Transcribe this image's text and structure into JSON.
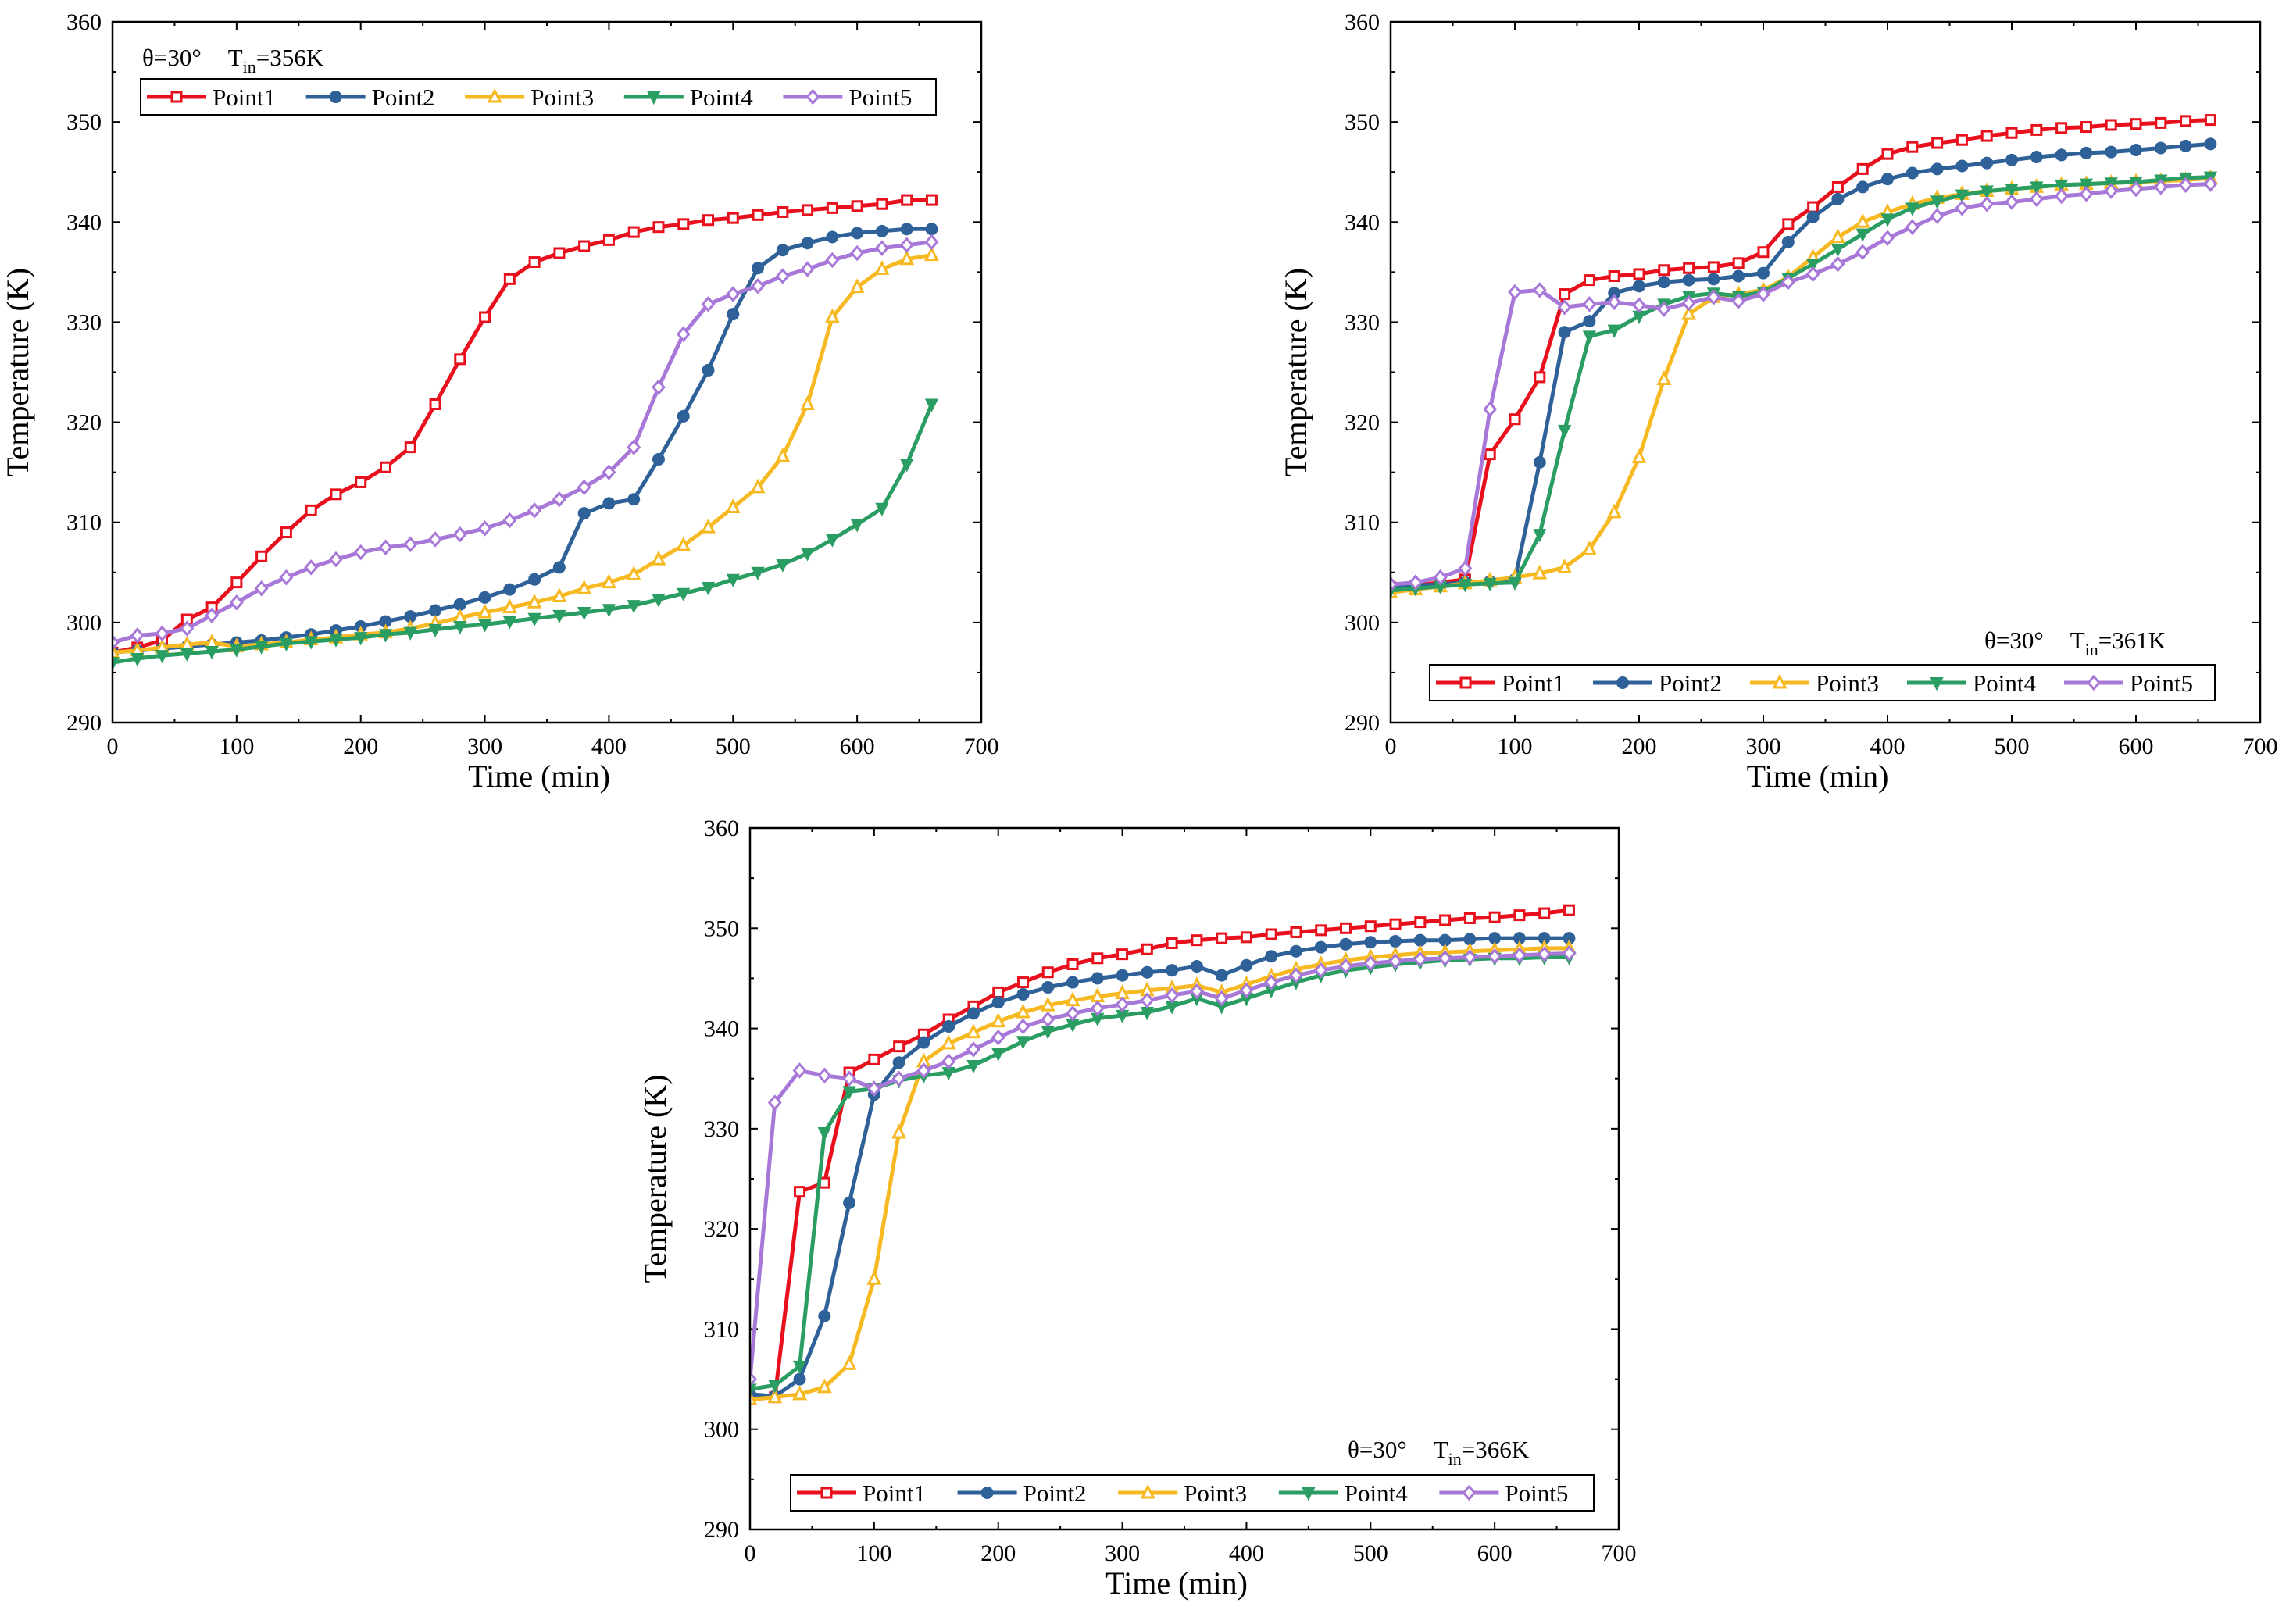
{
  "colors": {
    "Point1": "#e8101c",
    "Point2": "#2f6199",
    "Point3": "#f7b922",
    "Point4": "#2a9d62",
    "Point5": "#a878d8"
  },
  "markers": {
    "Point1": "square-open",
    "Point2": "circle-filled",
    "Point3": "triangle-up-open",
    "Point4": "triangle-down-filled",
    "Point5": "diamond-open"
  },
  "chart_data": [
    {
      "type": "line",
      "title": "",
      "xlabel": "Time (min)",
      "ylabel": "Temperature (K)",
      "xlim": [
        0,
        700
      ],
      "ylim": [
        290,
        360
      ],
      "xticks": [
        "0",
        "100",
        "200",
        "300",
        "400",
        "500",
        "600",
        "700"
      ],
      "yticks": [
        "290",
        "300",
        "310",
        "320",
        "330",
        "340",
        "350",
        "360"
      ],
      "annotation": {
        "prefix": "θ=30°",
        "var": "T",
        "sub": "in",
        "value": "=356K"
      },
      "legend_position": "top-left",
      "x": [
        0,
        20,
        40,
        60,
        80,
        100,
        120,
        140,
        160,
        180,
        200,
        220,
        240,
        260,
        280,
        300,
        320,
        340,
        360,
        380,
        400,
        420,
        440,
        460,
        480,
        500,
        520,
        540,
        560,
        580,
        600,
        620,
        640,
        660
      ],
      "series": [
        {
          "name": "Point1",
          "values": [
            297.0,
            297.5,
            298.2,
            300.3,
            301.5,
            304.0,
            306.6,
            309.0,
            311.2,
            312.8,
            314.0,
            315.5,
            317.5,
            321.8,
            326.3,
            330.5,
            334.3,
            336.0,
            336.9,
            337.6,
            338.2,
            339.0,
            339.5,
            339.8,
            340.2,
            340.4,
            340.7,
            341.0,
            341.2,
            341.4,
            341.6,
            341.8,
            342.2,
            342.2
          ]
        },
        {
          "name": "Point2",
          "values": [
            297.0,
            297.2,
            297.4,
            297.6,
            297.8,
            298.0,
            298.2,
            298.5,
            298.8,
            299.2,
            299.6,
            300.1,
            300.6,
            301.2,
            301.8,
            302.5,
            303.3,
            304.3,
            305.5,
            310.9,
            311.9,
            312.3,
            316.3,
            320.6,
            325.2,
            330.8,
            335.4,
            337.2,
            337.9,
            338.5,
            338.9,
            339.1,
            339.3,
            339.3
          ]
        },
        {
          "name": "Point3",
          "values": [
            297.0,
            297.2,
            297.5,
            297.8,
            298.0,
            297.6,
            297.8,
            298.0,
            298.3,
            298.5,
            298.8,
            299.0,
            299.4,
            299.9,
            300.5,
            301.0,
            301.5,
            302.0,
            302.6,
            303.4,
            304.0,
            304.8,
            306.3,
            307.7,
            309.5,
            311.5,
            313.5,
            316.6,
            321.8,
            330.5,
            333.5,
            335.3,
            336.3,
            336.7
          ]
        },
        {
          "name": "Point4",
          "values": [
            296.0,
            296.4,
            296.7,
            296.9,
            297.1,
            297.3,
            297.6,
            297.9,
            298.1,
            298.3,
            298.5,
            298.8,
            299.0,
            299.3,
            299.6,
            299.8,
            300.1,
            300.4,
            300.7,
            301.0,
            301.3,
            301.7,
            302.3,
            302.9,
            303.5,
            304.3,
            305.0,
            305.8,
            306.9,
            308.3,
            309.8,
            311.4,
            315.8,
            321.8
          ]
        },
        {
          "name": "Point5",
          "values": [
            298.0,
            298.7,
            298.9,
            299.4,
            300.7,
            302.0,
            303.4,
            304.5,
            305.5,
            306.3,
            307.0,
            307.5,
            307.8,
            308.3,
            308.8,
            309.4,
            310.2,
            311.2,
            312.3,
            313.5,
            315.0,
            317.5,
            323.5,
            328.8,
            331.8,
            332.8,
            333.6,
            334.6,
            335.3,
            336.2,
            336.9,
            337.4,
            337.7,
            338.0
          ]
        }
      ]
    },
    {
      "type": "line",
      "title": "",
      "xlabel": "Time (min)",
      "ylabel": "Temperature (K)",
      "xlim": [
        0,
        700
      ],
      "ylim": [
        290,
        360
      ],
      "xticks": [
        "0",
        "100",
        "200",
        "300",
        "400",
        "500",
        "600",
        "700"
      ],
      "yticks": [
        "290",
        "300",
        "310",
        "320",
        "330",
        "340",
        "350",
        "360"
      ],
      "annotation": {
        "prefix": "θ=30°",
        "var": "T",
        "sub": "in",
        "value": "=361K"
      },
      "legend_position": "bottom-right",
      "x": [
        0,
        20,
        40,
        60,
        80,
        100,
        120,
        140,
        160,
        180,
        200,
        220,
        240,
        260,
        280,
        300,
        320,
        340,
        360,
        380,
        400,
        420,
        440,
        460,
        480,
        500,
        520,
        540,
        560,
        580,
        600,
        620,
        640,
        660
      ],
      "series": [
        {
          "name": "Point1",
          "values": [
            303.5,
            303.7,
            304.0,
            304.3,
            316.8,
            320.3,
            324.5,
            332.8,
            334.2,
            334.6,
            334.8,
            335.2,
            335.4,
            335.5,
            335.9,
            337.0,
            339.8,
            341.5,
            343.5,
            345.3,
            346.8,
            347.5,
            347.9,
            348.2,
            348.6,
            348.9,
            349.2,
            349.4,
            349.5,
            349.7,
            349.8,
            349.9,
            350.1,
            350.2
          ]
        },
        {
          "name": "Point2",
          "values": [
            303.5,
            303.7,
            303.8,
            304.0,
            304.1,
            304.3,
            316.0,
            329.0,
            330.1,
            332.9,
            333.6,
            334.0,
            334.2,
            334.3,
            334.6,
            334.9,
            338.0,
            340.5,
            342.3,
            343.5,
            344.3,
            344.9,
            345.3,
            345.6,
            345.9,
            346.2,
            346.5,
            346.7,
            346.9,
            347.0,
            347.2,
            347.4,
            347.6,
            347.8
          ]
        },
        {
          "name": "Point3",
          "values": [
            303.0,
            303.3,
            303.6,
            303.9,
            304.2,
            304.5,
            304.9,
            305.5,
            307.3,
            311.0,
            316.5,
            324.3,
            330.8,
            332.5,
            332.8,
            333.2,
            334.5,
            336.5,
            338.5,
            340.0,
            341.0,
            341.8,
            342.4,
            342.8,
            343.1,
            343.3,
            343.5,
            343.7,
            343.8,
            343.9,
            344.0,
            344.1,
            344.2,
            344.4
          ]
        },
        {
          "name": "Point4",
          "values": [
            303.2,
            303.4,
            303.6,
            303.8,
            303.9,
            304.0,
            308.8,
            319.2,
            328.6,
            329.2,
            330.6,
            331.8,
            332.6,
            332.9,
            332.6,
            333.0,
            334.4,
            335.8,
            337.3,
            338.8,
            340.3,
            341.4,
            342.1,
            342.7,
            343.1,
            343.3,
            343.5,
            343.7,
            343.8,
            343.9,
            344.0,
            344.2,
            344.4,
            344.5
          ]
        },
        {
          "name": "Point5",
          "values": [
            303.8,
            304.0,
            304.5,
            305.4,
            321.3,
            333.0,
            333.2,
            331.5,
            331.8,
            332.0,
            331.7,
            331.3,
            331.9,
            332.5,
            332.1,
            332.8,
            334.0,
            334.8,
            335.8,
            337.0,
            338.4,
            339.5,
            340.6,
            341.4,
            341.8,
            342.0,
            342.3,
            342.6,
            342.8,
            343.1,
            343.3,
            343.5,
            343.7,
            343.8
          ]
        }
      ]
    },
    {
      "type": "line",
      "title": "",
      "xlabel": "Time (min)",
      "ylabel": "Temperature (K)",
      "xlim": [
        0,
        700
      ],
      "ylim": [
        290,
        360
      ],
      "xticks": [
        "0",
        "100",
        "200",
        "300",
        "400",
        "500",
        "600",
        "700"
      ],
      "yticks": [
        "290",
        "300",
        "310",
        "320",
        "330",
        "340",
        "350",
        "360"
      ],
      "annotation": {
        "prefix": "θ=30°",
        "var": "T",
        "sub": "in",
        "value": "=366K"
      },
      "legend_position": "bottom-right",
      "x": [
        0,
        20,
        40,
        60,
        80,
        100,
        120,
        140,
        160,
        180,
        200,
        220,
        240,
        260,
        280,
        300,
        320,
        340,
        360,
        380,
        400,
        420,
        440,
        460,
        480,
        500,
        520,
        540,
        560,
        580,
        600,
        620,
        640,
        660
      ],
      "series": [
        {
          "name": "Point1",
          "values": [
            303.0,
            303.2,
            323.7,
            324.6,
            335.6,
            336.9,
            338.2,
            339.4,
            340.9,
            342.2,
            343.6,
            344.6,
            345.6,
            346.4,
            347.0,
            347.4,
            347.9,
            348.5,
            348.8,
            349.0,
            349.1,
            349.4,
            349.6,
            349.8,
            350.0,
            350.2,
            350.4,
            350.6,
            350.8,
            351.0,
            351.1,
            351.3,
            351.5,
            351.8
          ]
        },
        {
          "name": "Point2",
          "values": [
            303.5,
            303.3,
            305.0,
            311.3,
            322.6,
            333.4,
            336.6,
            338.6,
            340.2,
            341.5,
            342.6,
            343.4,
            344.1,
            344.6,
            345.0,
            345.3,
            345.6,
            345.8,
            346.2,
            345.3,
            346.3,
            347.2,
            347.7,
            348.1,
            348.4,
            348.6,
            348.7,
            348.8,
            348.8,
            348.9,
            349.0,
            349.0,
            349.0,
            349.0
          ]
        },
        {
          "name": "Point3",
          "values": [
            303.0,
            303.2,
            303.5,
            304.2,
            306.5,
            315.0,
            329.6,
            336.7,
            338.5,
            339.6,
            340.7,
            341.6,
            342.3,
            342.8,
            343.2,
            343.5,
            343.8,
            344.0,
            344.3,
            343.6,
            344.4,
            345.2,
            345.9,
            346.4,
            346.8,
            347.1,
            347.3,
            347.5,
            347.6,
            347.7,
            347.8,
            347.9,
            348.0,
            348.0
          ]
        },
        {
          "name": "Point4",
          "values": [
            304.0,
            304.4,
            306.3,
            329.6,
            333.7,
            334.0,
            334.8,
            335.3,
            335.6,
            336.3,
            337.5,
            338.7,
            339.7,
            340.4,
            341.0,
            341.3,
            341.6,
            342.2,
            343.0,
            342.2,
            343.0,
            343.8,
            344.6,
            345.3,
            345.8,
            346.1,
            346.4,
            346.6,
            346.8,
            346.9,
            347.0,
            347.0,
            347.1,
            347.1
          ]
        },
        {
          "name": "Point5",
          "values": [
            305.0,
            332.6,
            335.8,
            335.3,
            335.0,
            334.0,
            335.0,
            335.8,
            336.7,
            337.9,
            339.1,
            340.2,
            340.9,
            341.5,
            342.0,
            342.4,
            342.8,
            343.3,
            343.7,
            343.0,
            343.8,
            344.6,
            345.3,
            345.8,
            346.2,
            346.5,
            346.7,
            346.9,
            347.0,
            347.1,
            347.2,
            347.3,
            347.4,
            347.5
          ]
        }
      ]
    }
  ]
}
